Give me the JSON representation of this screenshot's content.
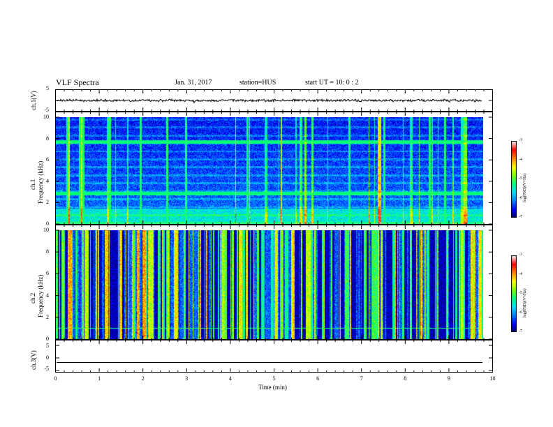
{
  "header": {
    "title": "VLF Spectra",
    "date": "Jan. 31, 2017",
    "station": "station=HUS",
    "start_ut": "start UT =   10: 0  : 2"
  },
  "chart_data": [
    {
      "type": "line",
      "panel": "ch1-waveform",
      "ylabel": "ch.1(V)",
      "ylim": [
        -5,
        5
      ],
      "ytick_labels": [
        "5",
        "-5"
      ],
      "xlim": [
        0,
        10
      ],
      "description_values": {
        "mean": 0,
        "amplitude": 0.6
      },
      "color": "#000000"
    },
    {
      "type": "heatmap",
      "panel": "ch1-spectrogram",
      "ylabel": "ch.1\nFrequency (kHz)",
      "ylabel_lines": [
        "ch.1",
        "Frequency (kHz)"
      ],
      "ylim": [
        0,
        10
      ],
      "ytick_labels": [
        "0",
        "2",
        "4",
        "6",
        "8",
        "10"
      ],
      "xlim": [
        0,
        10
      ],
      "data_end_min": 9.83,
      "horizontal_lines_khz": [
        2.9,
        7.7
      ],
      "strong_vertical_lines_min": [
        0.25,
        0.55,
        0.63,
        1.23,
        1.95,
        2.55,
        2.98,
        4.4,
        6.75,
        7.55,
        8.6,
        8.95
      ],
      "colorbar": {
        "label": "log(PSD)(V²/Hz)",
        "range": [
          -7,
          -3
        ],
        "tick_labels": [
          "-3",
          "-4",
          "-5",
          "-6",
          "-7"
        ]
      }
    },
    {
      "type": "heatmap",
      "panel": "ch2-spectrogram",
      "ylabel_lines": [
        "ch.2",
        "Frequency (kHz)"
      ],
      "ylim": [
        0,
        10
      ],
      "ytick_labels": [
        "0",
        "2",
        "4",
        "6",
        "8",
        "10"
      ],
      "xlim": [
        0,
        10
      ],
      "data_end_min": 9.83,
      "horizontal_lines_khz": [
        1.0
      ],
      "colorbar": {
        "label": "log(PSD)(V²/Hz)",
        "range": [
          -7,
          -3
        ],
        "tick_labels": [
          "-3",
          "-4",
          "-5",
          "-6",
          "-7"
        ]
      }
    },
    {
      "type": "line",
      "panel": "ch3-waveform",
      "ylabel": "ch.3(V)",
      "ylim": [
        -5,
        5
      ],
      "ytick_labels": [
        "5",
        "0",
        "-5"
      ],
      "xlim": [
        0,
        10
      ],
      "values_const": -1.8,
      "xlabel": "Time (min)",
      "xtick_labels": [
        "0",
        "1",
        "2",
        "3",
        "4",
        "5",
        "6",
        "7",
        "8",
        "9",
        "10"
      ]
    }
  ],
  "colors": {
    "colormap": [
      "#000066",
      "#0000ff",
      "#0080ff",
      "#00e0ff",
      "#00ff80",
      "#80ff00",
      "#ffff00",
      "#ff8000",
      "#ff0000",
      "#ffffff"
    ],
    "background": "#00004a"
  }
}
